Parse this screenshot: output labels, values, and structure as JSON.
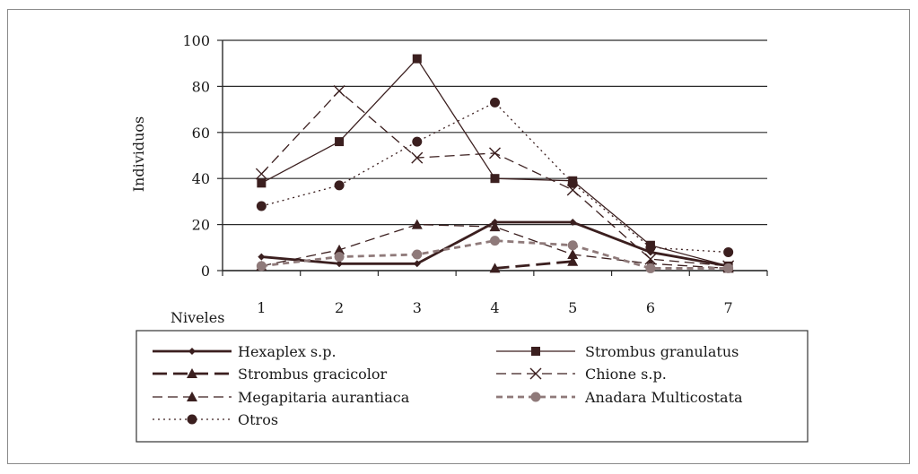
{
  "chart_data": {
    "type": "line",
    "xlabel": "Niveles",
    "ylabel": "Individuos",
    "categories": [
      "1",
      "2",
      "3",
      "4",
      "5",
      "6",
      "7"
    ],
    "yticks": [
      "0",
      "20",
      "40",
      "60",
      "80",
      "100"
    ],
    "ylim": [
      0,
      100
    ],
    "grid": "horizontal",
    "legend_position": "bottom",
    "series": [
      {
        "name": "Hexaplex s.p.",
        "marker": "diamond",
        "dash": "solid",
        "weight": "heavy",
        "color": "#3b1f1f",
        "values": [
          6,
          3,
          3,
          21,
          21,
          8,
          2
        ]
      },
      {
        "name": "Strombus granulatus",
        "marker": "square",
        "dash": "solid",
        "weight": "normal",
        "color": "#3b1f1f",
        "values": [
          38,
          56,
          92,
          40,
          39,
          11,
          2
        ]
      },
      {
        "name": "Strombus gracicolor",
        "marker": "triangle",
        "dash": "long-dash",
        "weight": "heavy",
        "color": "#3b1f1f",
        "values": [
          null,
          null,
          null,
          1,
          4,
          null,
          null
        ]
      },
      {
        "name": "Chione s.p.",
        "marker": "x",
        "dash": "dash",
        "weight": "normal",
        "color": "#3b1f1f",
        "values": [
          42,
          78,
          49,
          51,
          35,
          5,
          2
        ]
      },
      {
        "name": "Megapitaria aurantiaca",
        "marker": "triangle",
        "dash": "dash",
        "weight": "normal",
        "color": "#3b1f1f",
        "values": [
          2,
          9,
          20,
          19,
          7,
          3,
          1
        ]
      },
      {
        "name": "Anadara Multicostata",
        "marker": "circle",
        "dash": "short-dash",
        "weight": "heavy",
        "color": "#8f7a7a",
        "values": [
          2,
          6,
          7,
          13,
          11,
          1,
          1
        ]
      },
      {
        "name": "Otros",
        "marker": "circle",
        "dash": "dot",
        "weight": "normal",
        "color": "#3b1f1f",
        "values": [
          28,
          37,
          56,
          73,
          38,
          10,
          8
        ]
      }
    ]
  }
}
